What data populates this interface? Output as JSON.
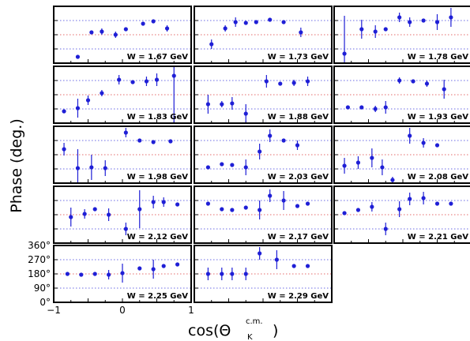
{
  "chart_data": {
    "type": "scatter",
    "ylabel": "Phase (deg.)",
    "xlabel_main": "cos(Θ",
    "xlabel_sub": "K",
    "xlabel_sup": "c.m.",
    "xlabel_close": ")",
    "xlim": [
      -1,
      1
    ],
    "ylim": [
      0,
      360
    ],
    "y_ticks": [
      0,
      90,
      180,
      270,
      360
    ],
    "y_tick_labels": [
      "0°",
      "90°",
      "180°",
      "270°",
      "360°"
    ],
    "x_tick_labels": [
      "−1",
      "0",
      "1"
    ],
    "x_ticks": [
      -1,
      0,
      1
    ],
    "reference_lines": {
      "blue": [
        90,
        270
      ],
      "red": [
        180
      ]
    },
    "grid": false,
    "panels": [
      {
        "label": "W = 1.67 GeV",
        "points": [
          {
            "x": -0.65,
            "y": 40,
            "err": 0
          },
          {
            "x": -0.45,
            "y": 195,
            "err": 0
          },
          {
            "x": -0.3,
            "y": 200,
            "err": 20
          },
          {
            "x": -0.1,
            "y": 180,
            "err": 20
          },
          {
            "x": 0.05,
            "y": 215,
            "err": 0
          },
          {
            "x": 0.3,
            "y": 250,
            "err": 0
          },
          {
            "x": 0.45,
            "y": 265,
            "err": 0
          },
          {
            "x": 0.65,
            "y": 220,
            "err": 20
          }
        ]
      },
      {
        "label": "W = 1.73 GeV",
        "points": [
          {
            "x": -0.75,
            "y": 120,
            "err": 30
          },
          {
            "x": -0.55,
            "y": 220,
            "err": 20
          },
          {
            "x": -0.4,
            "y": 260,
            "err": 30
          },
          {
            "x": -0.25,
            "y": 255,
            "err": 0
          },
          {
            "x": -0.1,
            "y": 260,
            "err": 0
          },
          {
            "x": 0.1,
            "y": 275,
            "err": 0
          },
          {
            "x": 0.3,
            "y": 260,
            "err": 0
          },
          {
            "x": 0.55,
            "y": 195,
            "err": 30
          }
        ]
      },
      {
        "label": "W = 1.78 GeV",
        "points": [
          {
            "x": -0.85,
            "y": 60,
            "err": 240
          },
          {
            "x": -0.6,
            "y": 215,
            "err": 60
          },
          {
            "x": -0.4,
            "y": 200,
            "err": 40
          },
          {
            "x": -0.25,
            "y": 215,
            "err": 0
          },
          {
            "x": -0.05,
            "y": 290,
            "err": 30
          },
          {
            "x": 0.1,
            "y": 260,
            "err": 30
          },
          {
            "x": 0.3,
            "y": 270,
            "err": 0
          },
          {
            "x": 0.5,
            "y": 260,
            "err": 50
          },
          {
            "x": 0.7,
            "y": 290,
            "err": 60
          }
        ]
      },
      {
        "label": "W = 1.83 GeV",
        "points": [
          {
            "x": -0.85,
            "y": 75,
            "err": 0
          },
          {
            "x": -0.65,
            "y": 95,
            "err": 60
          },
          {
            "x": -0.5,
            "y": 145,
            "err": 30
          },
          {
            "x": -0.3,
            "y": 190,
            "err": 20
          },
          {
            "x": -0.05,
            "y": 275,
            "err": 30
          },
          {
            "x": 0.15,
            "y": 260,
            "err": 0
          },
          {
            "x": 0.35,
            "y": 265,
            "err": 30
          },
          {
            "x": 0.5,
            "y": 275,
            "err": 40
          },
          {
            "x": 0.75,
            "y": 300,
            "err": 330
          }
        ]
      },
      {
        "label": "W = 1.88 GeV",
        "points": [
          {
            "x": -0.8,
            "y": 120,
            "err": 60
          },
          {
            "x": -0.6,
            "y": 120,
            "err": 20
          },
          {
            "x": -0.45,
            "y": 125,
            "err": 40
          },
          {
            "x": -0.25,
            "y": 60,
            "err": 60
          },
          {
            "x": 0.05,
            "y": 265,
            "err": 40
          },
          {
            "x": 0.25,
            "y": 250,
            "err": 0
          },
          {
            "x": 0.45,
            "y": 255,
            "err": 20
          },
          {
            "x": 0.65,
            "y": 265,
            "err": 30
          }
        ]
      },
      {
        "label": "W = 1.93 GeV",
        "points": [
          {
            "x": -0.8,
            "y": 100,
            "err": 0
          },
          {
            "x": -0.6,
            "y": 100,
            "err": 0
          },
          {
            "x": -0.4,
            "y": 90,
            "err": 20
          },
          {
            "x": -0.25,
            "y": 100,
            "err": 40
          },
          {
            "x": -0.05,
            "y": 270,
            "err": 20
          },
          {
            "x": 0.15,
            "y": 265,
            "err": 0
          },
          {
            "x": 0.35,
            "y": 250,
            "err": 20
          },
          {
            "x": 0.6,
            "y": 215,
            "err": 60
          }
        ]
      },
      {
        "label": "W = 1.98 GeV",
        "points": [
          {
            "x": -0.85,
            "y": 215,
            "err": 40
          },
          {
            "x": -0.65,
            "y": 95,
            "err": 120
          },
          {
            "x": -0.45,
            "y": 100,
            "err": 80
          },
          {
            "x": -0.25,
            "y": 95,
            "err": 50
          },
          {
            "x": 0.05,
            "y": 320,
            "err": 30
          },
          {
            "x": 0.25,
            "y": 270,
            "err": 0
          },
          {
            "x": 0.45,
            "y": 260,
            "err": 0
          },
          {
            "x": 0.7,
            "y": 265,
            "err": 0
          }
        ]
      },
      {
        "label": "W = 2.03 GeV",
        "points": [
          {
            "x": -0.8,
            "y": 100,
            "err": 0
          },
          {
            "x": -0.6,
            "y": 120,
            "err": 0
          },
          {
            "x": -0.45,
            "y": 115,
            "err": 0
          },
          {
            "x": -0.25,
            "y": 100,
            "err": 50
          },
          {
            "x": -0.05,
            "y": 200,
            "err": 50
          },
          {
            "x": 0.1,
            "y": 300,
            "err": 40
          },
          {
            "x": 0.3,
            "y": 270,
            "err": 0
          },
          {
            "x": 0.5,
            "y": 240,
            "err": 30
          }
        ]
      },
      {
        "label": "W = 2.08 GeV",
        "points": [
          {
            "x": -0.85,
            "y": 110,
            "err": 50
          },
          {
            "x": -0.65,
            "y": 130,
            "err": 40
          },
          {
            "x": -0.45,
            "y": 160,
            "err": 60
          },
          {
            "x": -0.3,
            "y": 100,
            "err": 50
          },
          {
            "x": -0.15,
            "y": 20,
            "err": 20
          },
          {
            "x": 0.1,
            "y": 300,
            "err": 50
          },
          {
            "x": 0.3,
            "y": 255,
            "err": 30
          },
          {
            "x": 0.5,
            "y": 240,
            "err": 0
          }
        ]
      },
      {
        "label": "W = 2.12 GeV",
        "points": [
          {
            "x": -0.75,
            "y": 165,
            "err": 60
          },
          {
            "x": -0.55,
            "y": 185,
            "err": 30
          },
          {
            "x": -0.4,
            "y": 215,
            "err": 0
          },
          {
            "x": -0.2,
            "y": 180,
            "err": 40
          },
          {
            "x": 0.05,
            "y": 90,
            "err": 40
          },
          {
            "x": 0.25,
            "y": 215,
            "err": 120
          },
          {
            "x": 0.45,
            "y": 260,
            "err": 40
          },
          {
            "x": 0.6,
            "y": 260,
            "err": 30
          },
          {
            "x": 0.8,
            "y": 245,
            "err": 0
          }
        ]
      },
      {
        "label": "W = 2.17 GeV",
        "points": [
          {
            "x": -0.8,
            "y": 250,
            "err": 0
          },
          {
            "x": -0.6,
            "y": 215,
            "err": 0
          },
          {
            "x": -0.45,
            "y": 210,
            "err": 0
          },
          {
            "x": -0.25,
            "y": 225,
            "err": 0
          },
          {
            "x": -0.05,
            "y": 210,
            "err": 60
          },
          {
            "x": 0.1,
            "y": 300,
            "err": 40
          },
          {
            "x": 0.3,
            "y": 270,
            "err": 60
          },
          {
            "x": 0.5,
            "y": 235,
            "err": 0
          },
          {
            "x": 0.65,
            "y": 250,
            "err": 0
          }
        ]
      },
      {
        "label": "W = 2.21 GeV",
        "points": [
          {
            "x": -0.85,
            "y": 190,
            "err": 0
          },
          {
            "x": -0.65,
            "y": 210,
            "err": 0
          },
          {
            "x": -0.45,
            "y": 230,
            "err": 30
          },
          {
            "x": -0.25,
            "y": 90,
            "err": 40
          },
          {
            "x": -0.05,
            "y": 215,
            "err": 50
          },
          {
            "x": 0.1,
            "y": 280,
            "err": 40
          },
          {
            "x": 0.3,
            "y": 285,
            "err": 40
          },
          {
            "x": 0.5,
            "y": 250,
            "err": 0
          },
          {
            "x": 0.7,
            "y": 250,
            "err": 0
          }
        ]
      },
      {
        "label": "W = 2.25 GeV",
        "points": [
          {
            "x": -0.8,
            "y": 180,
            "err": 0
          },
          {
            "x": -0.6,
            "y": 175,
            "err": 0
          },
          {
            "x": -0.4,
            "y": 180,
            "err": 0
          },
          {
            "x": -0.2,
            "y": 175,
            "err": 30
          },
          {
            "x": 0.0,
            "y": 185,
            "err": 60
          },
          {
            "x": 0.25,
            "y": 215,
            "err": 0
          },
          {
            "x": 0.45,
            "y": 210,
            "err": 60
          },
          {
            "x": 0.6,
            "y": 230,
            "err": 0
          },
          {
            "x": 0.8,
            "y": 240,
            "err": 0
          }
        ]
      },
      {
        "label": "W = 2.29 GeV",
        "points": [
          {
            "x": -0.8,
            "y": 180,
            "err": 40
          },
          {
            "x": -0.6,
            "y": 180,
            "err": 40
          },
          {
            "x": -0.45,
            "y": 180,
            "err": 40
          },
          {
            "x": -0.25,
            "y": 180,
            "err": 40
          },
          {
            "x": -0.05,
            "y": 310,
            "err": 40
          },
          {
            "x": 0.2,
            "y": 270,
            "err": 60
          },
          {
            "x": 0.45,
            "y": 230,
            "err": 0
          },
          {
            "x": 0.65,
            "y": 230,
            "err": 0
          }
        ]
      }
    ]
  }
}
